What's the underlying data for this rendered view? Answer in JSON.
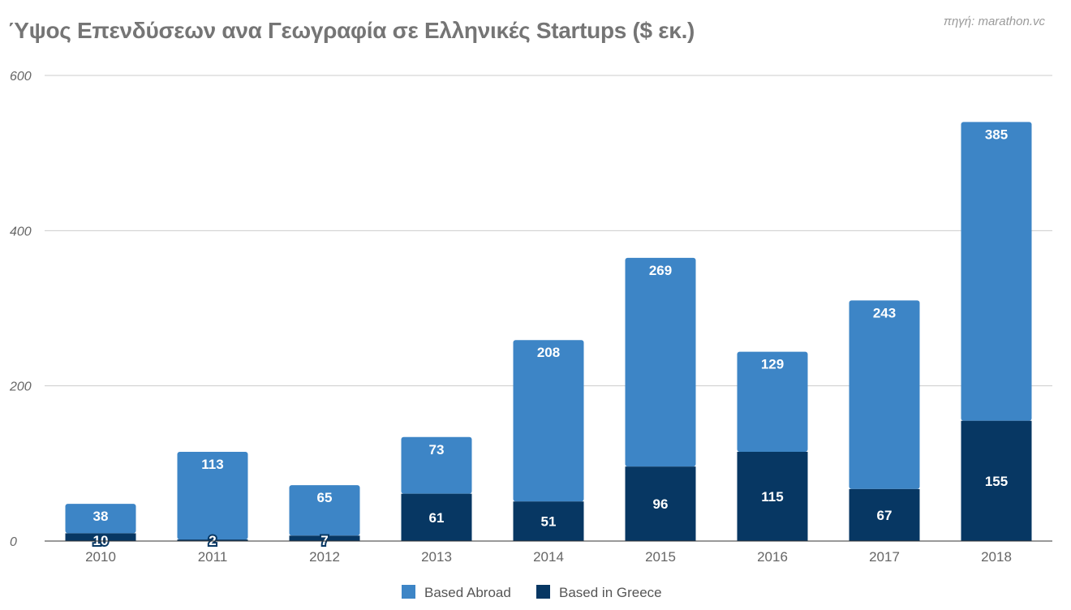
{
  "chart_data": {
    "type": "bar",
    "stacked": true,
    "title": "Ύψος Επενδύσεων ανα Γεωγραφία σε Ελληνικές Startups ($ εκ.)",
    "source": "πηγή: marathon.vc",
    "categories": [
      "2010",
      "2011",
      "2012",
      "2013",
      "2014",
      "2015",
      "2016",
      "2017",
      "2018"
    ],
    "series": [
      {
        "name": "Based in Greece",
        "color": "#073763",
        "values": [
          10,
          2,
          7,
          61,
          51,
          96,
          115,
          67,
          155
        ]
      },
      {
        "name": "Based Abroad",
        "color": "#3d85c6",
        "values": [
          38,
          113,
          65,
          73,
          208,
          269,
          129,
          243,
          385
        ]
      }
    ],
    "legend_order": [
      "Based Abroad",
      "Based in Greece"
    ],
    "legend_position": "bottom",
    "ylim": [
      0,
      600
    ],
    "yticks": [
      0,
      200,
      400,
      600
    ],
    "grid": true,
    "xlabel": "",
    "ylabel": ""
  }
}
